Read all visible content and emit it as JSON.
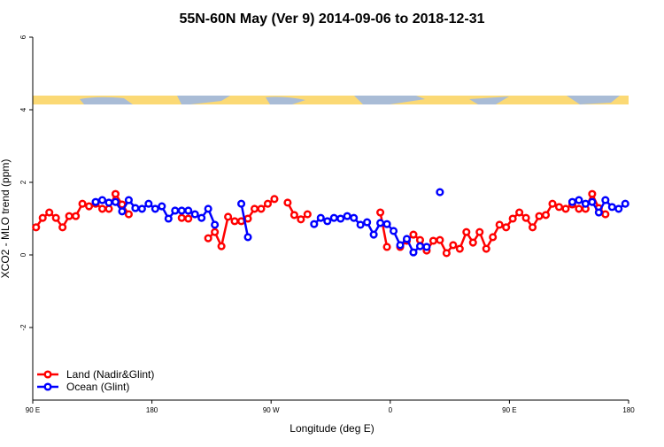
{
  "chart_data": {
    "type": "line",
    "title": "55N-60N May (Ver 9)   2014-09-06 to 2018-12-31",
    "x_label": "Longitude (deg E)",
    "y_label": "XCO2 - MLO trend (ppm)",
    "x": [
      92.5,
      97.5,
      102.5,
      107.5,
      112.5,
      117.5,
      122.5,
      127.5,
      132.5,
      137.5,
      142.5,
      147.5,
      152.5,
      157.5,
      162.5,
      167.5,
      172.5,
      177.5,
      182.5,
      187.5,
      192.5,
      197.5,
      202.5,
      207.5,
      212.5,
      217.5,
      222.5,
      227.5,
      232.5,
      237.5,
      242.5,
      247.5,
      252.5,
      257.5,
      262.5,
      267.5,
      272.5,
      277.5,
      282.5,
      287.5,
      292.5,
      297.5,
      302.5,
      307.5,
      312.5,
      317.5,
      322.5,
      327.5,
      332.5,
      337.5,
      342.5,
      347.5,
      352.5,
      357.5,
      362.5,
      367.5,
      372.5,
      377.5,
      382.5,
      387.5,
      392.5,
      397.5,
      402.5,
      407.5,
      412.5,
      417.5,
      422.5,
      427.5,
      432.5,
      437.5,
      442.5,
      447.5,
      452.5,
      457.5,
      462.5,
      467.5,
      472.5,
      477.5,
      482.5,
      487.5,
      492.5,
      497.5,
      502.5,
      507.5,
      512.5,
      517.5,
      522.5,
      527.5,
      532.5,
      537.5
    ],
    "series": [
      {
        "name": "Land (Nadir&Glint)",
        "color": "#ff0000",
        "values": [
          0.76,
          1.02,
          1.17,
          1.02,
          0.76,
          1.07,
          1.07,
          1.41,
          1.34,
          1.41,
          1.27,
          1.27,
          1.68,
          1.39,
          1.12,
          null,
          null,
          null,
          null,
          null,
          null,
          null,
          1.02,
          1.0,
          null,
          null,
          0.46,
          0.63,
          0.24,
          1.05,
          0.93,
          0.93,
          1.0,
          1.27,
          1.27,
          1.41,
          1.54,
          null,
          1.44,
          1.1,
          0.98,
          1.12,
          null,
          null,
          null,
          null,
          null,
          null,
          null,
          null,
          null,
          null,
          1.17,
          0.22,
          null,
          0.22,
          0.39,
          0.56,
          0.41,
          0.12,
          0.39,
          0.41,
          0.05,
          0.27,
          0.17,
          0.63,
          0.34,
          0.63,
          0.17,
          0.49,
          0.83,
          0.76,
          1.0,
          1.17,
          1.02,
          0.76,
          1.07,
          1.1,
          1.41,
          1.32,
          1.27,
          1.39,
          1.27,
          1.27,
          1.68,
          1.29,
          1.12,
          null,
          null,
          null
        ]
      },
      {
        "name": "Ocean (Glint)",
        "color": "#0000ff",
        "values": [
          null,
          null,
          null,
          null,
          null,
          null,
          null,
          null,
          null,
          1.46,
          1.51,
          1.44,
          1.46,
          1.2,
          1.51,
          1.29,
          1.27,
          1.41,
          1.27,
          1.34,
          1.0,
          1.22,
          1.22,
          1.22,
          1.12,
          1.02,
          1.27,
          0.83,
          null,
          null,
          null,
          1.41,
          0.49,
          null,
          null,
          null,
          null,
          null,
          null,
          null,
          null,
          null,
          0.85,
          1.02,
          0.93,
          1.02,
          1.0,
          1.07,
          1.02,
          0.83,
          0.9,
          0.56,
          0.88,
          0.85,
          0.66,
          0.27,
          0.44,
          0.07,
          0.24,
          0.22,
          null,
          1.73,
          null,
          null,
          null,
          null,
          null,
          null,
          null,
          null,
          null,
          null,
          null,
          null,
          null,
          null,
          null,
          null,
          null,
          null,
          null,
          1.46,
          1.51,
          1.41,
          1.46,
          1.17,
          1.51,
          1.32,
          1.27,
          1.41
        ]
      }
    ],
    "xlim": [
      90,
      540
    ],
    "xticks": [
      {
        "value": 90,
        "label": "90 E"
      },
      {
        "value": 180,
        "label": "180"
      },
      {
        "value": 270,
        "label": "90 W"
      },
      {
        "value": 360,
        "label": "0"
      },
      {
        "value": 450,
        "label": "90 E"
      },
      {
        "value": 540,
        "label": "180"
      }
    ],
    "ylim": [
      -4,
      6
    ],
    "yticks": [
      -2,
      0,
      2,
      4,
      6
    ],
    "legend": "bottom-left"
  }
}
